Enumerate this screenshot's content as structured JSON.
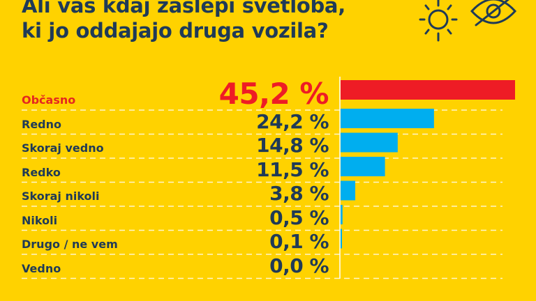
{
  "title_lines": [
    "Ali vas kdaj zaslepi svetloba,",
    "ki jo oddajajo druga vozila?"
  ],
  "icons": [
    "sun-icon",
    "eye-slash-icon"
  ],
  "colors": {
    "background": "#FFD200",
    "highlight": "#EE1C25",
    "bar": "#00AEEF",
    "text": "#1F3A57"
  },
  "chart_data": {
    "type": "bar",
    "orientation": "horizontal",
    "title": "Ali vas kdaj zaslepi svetloba, ki jo oddajajo druga vozila?",
    "categories": [
      "Občasno",
      "Redno",
      "Skoraj vedno",
      "Redko",
      "Skoraj nikoli",
      "Nikoli",
      "Drugo / ne vem",
      "Vedno"
    ],
    "values": [
      45.2,
      24.2,
      14.8,
      11.5,
      3.8,
      0.5,
      0.1,
      0.0
    ],
    "value_labels": [
      "45,2 %",
      "24,2 %",
      "14,8 %",
      "11,5 %",
      "3,8 %",
      "0,5 %",
      "0,1 %",
      "0,0 %"
    ],
    "highlight_index": 0,
    "unit": "%",
    "xlim": [
      0,
      45.2
    ],
    "grid": "dashed row separators"
  }
}
